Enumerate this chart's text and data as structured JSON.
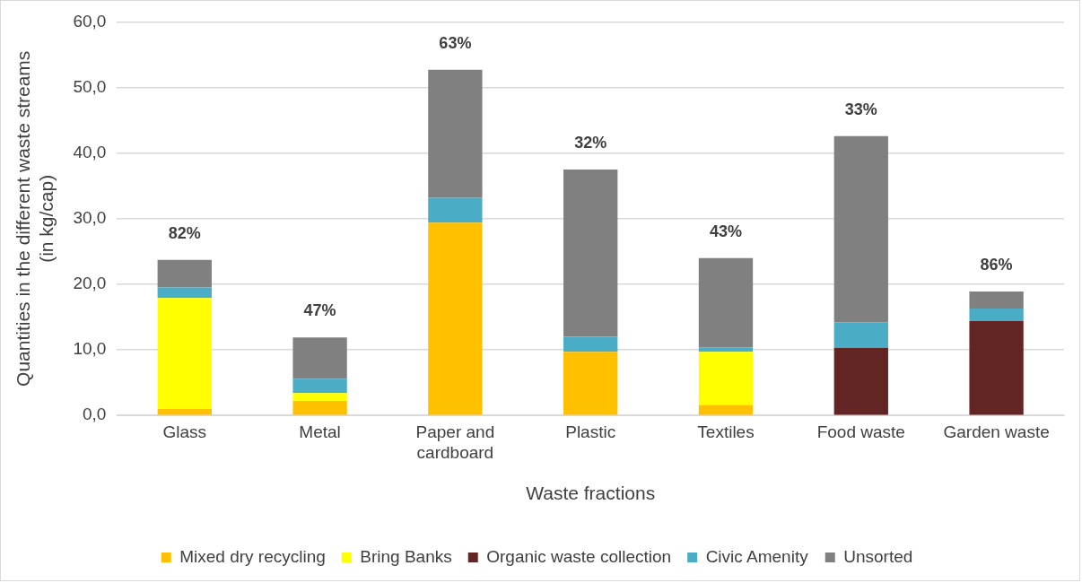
{
  "chart_data": {
    "type": "bar",
    "stacked": true,
    "xlabel": "Waste fractions",
    "ylabel": "Quantities in the different waste streams (in kg/cap)",
    "categories": [
      "Glass",
      "Metal",
      "Paper and cardboard",
      "Plastic",
      "Textiles",
      "Food waste",
      "Garden waste"
    ],
    "series": [
      {
        "name": "Mixed dry recycling",
        "color": "#ffc000",
        "values": [
          1.0,
          2.2,
          29.4,
          9.7,
          1.6,
          null,
          null
        ]
      },
      {
        "name": "Bring Banks",
        "color": "#ffff00",
        "values": [
          16.9,
          1.2,
          null,
          null,
          8.1,
          null,
          null
        ]
      },
      {
        "name": "Organic waste collection",
        "color": "#632523",
        "values": [
          null,
          null,
          null,
          null,
          null,
          10.3,
          14.4
        ]
      },
      {
        "name": "Civic Amenity",
        "color": "#4bacc6",
        "values": [
          1.6,
          2.2,
          3.8,
          2.3,
          0.7,
          3.9,
          1.9
        ]
      },
      {
        "name": "Unsorted",
        "color": "#808080",
        "values": [
          4.2,
          6.3,
          19.5,
          25.5,
          13.6,
          28.4,
          2.6
        ]
      }
    ],
    "ylim": [
      0,
      60
    ],
    "yticks": [
      {
        "value": 0,
        "label": "0,0"
      },
      {
        "value": 10,
        "label": "10,0"
      },
      {
        "value": 20,
        "label": "20,0"
      },
      {
        "value": 30,
        "label": "30,0"
      },
      {
        "value": 40,
        "label": "40,0"
      },
      {
        "value": 50,
        "label": "50,0"
      },
      {
        "value": 60,
        "label": "60,0"
      }
    ],
    "grid": "y",
    "legend": "bottom",
    "annotations": [
      {
        "text": "82%",
        "x": "Glass",
        "y": 23.7
      },
      {
        "text": "47%",
        "x": "Metal",
        "y": 11.9
      },
      {
        "text": "63%",
        "x": "Paper and cardboard",
        "y": 52.7
      },
      {
        "text": "32%",
        "x": "Plastic",
        "y": 37.5
      },
      {
        "text": "43%",
        "x": "Textiles",
        "y": 24.0
      },
      {
        "text": "33%",
        "x": "Food waste",
        "y": 42.6
      },
      {
        "text": "86%",
        "x": "Garden waste",
        "y": 18.9
      }
    ]
  }
}
